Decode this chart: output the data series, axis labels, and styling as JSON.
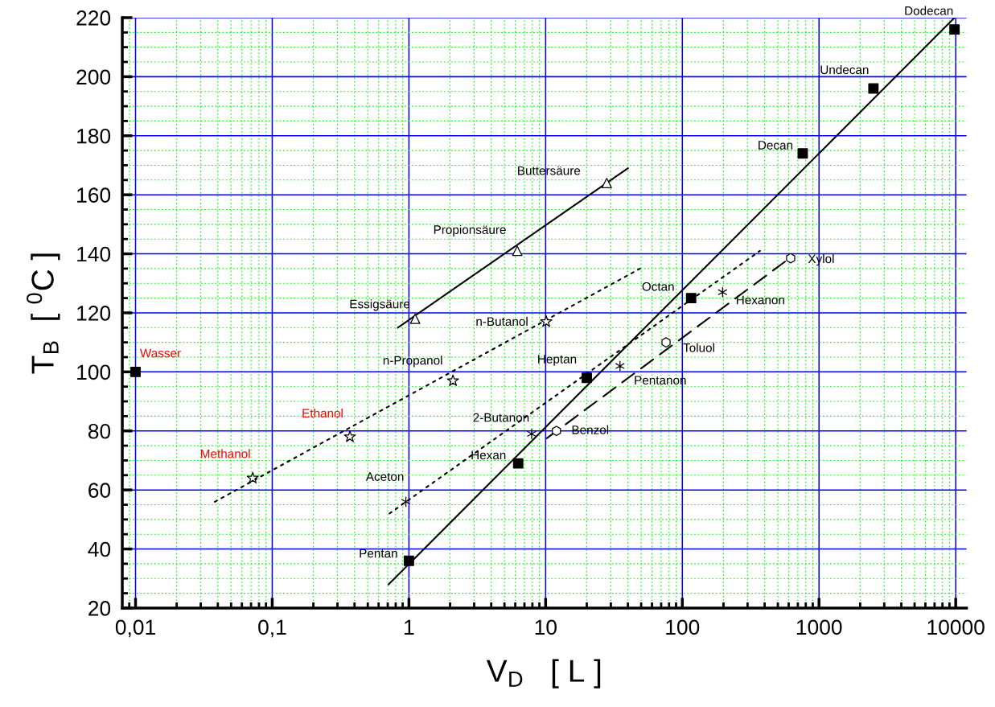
{
  "chart_data": {
    "type": "scatter",
    "xlabel": "V$_{D}$   [ L ]",
    "ylabel": "T$_{B}$  [ $^{0}$C ]",
    "log": "x",
    "grid": true,
    "legend": false,
    "xlim": [
      0.008,
      12000
    ],
    "xticks": [
      {
        "value": 0.01,
        "label": "0,01"
      },
      {
        "value": 0.1,
        "label": "0,1"
      },
      1,
      10,
      100,
      1000,
      10000,
      {
        "value": 0.009,
        "label": null
      },
      {
        "value": 0.02,
        "label": null
      },
      {
        "value": 0.03,
        "label": null
      },
      {
        "value": 0.04,
        "label": null
      },
      {
        "value": 0.05,
        "label": null
      },
      {
        "value": 0.06,
        "label": null
      },
      {
        "value": 0.07,
        "label": null
      },
      {
        "value": 0.08,
        "label": null
      },
      {
        "value": 0.09,
        "label": null
      },
      {
        "value": 0.2,
        "label": null
      },
      {
        "value": 0.3,
        "label": null
      },
      {
        "value": 0.4,
        "label": null
      },
      {
        "value": 0.5,
        "label": null
      },
      {
        "value": 0.6,
        "label": null
      },
      {
        "value": 0.7,
        "label": null
      },
      {
        "value": 0.8,
        "label": null
      },
      {
        "value": 0.9,
        "label": null
      },
      {
        "value": 2,
        "label": null
      },
      {
        "value": 3,
        "label": null
      },
      {
        "value": 4,
        "label": null
      },
      {
        "value": 5,
        "label": null
      },
      {
        "value": 6,
        "label": null
      },
      {
        "value": 7,
        "label": null
      },
      {
        "value": 8,
        "label": null
      },
      {
        "value": 9,
        "label": null
      },
      {
        "value": 20,
        "label": null
      },
      {
        "value": 30,
        "label": null
      },
      {
        "value": 40,
        "label": null
      },
      {
        "value": 50,
        "label": null
      },
      {
        "value": 60,
        "label": null
      },
      {
        "value": 70,
        "label": null
      },
      {
        "value": 80,
        "label": null
      },
      {
        "value": 90,
        "label": null
      },
      {
        "value": 200,
        "label": null
      },
      {
        "value": 300,
        "label": null
      },
      {
        "value": 400,
        "label": null
      },
      {
        "value": 500,
        "label": null
      },
      {
        "value": 600,
        "label": null
      },
      {
        "value": 700,
        "label": null
      },
      {
        "value": 800,
        "label": null
      },
      {
        "value": 900,
        "label": null
      },
      {
        "value": 2000,
        "label": null
      },
      {
        "value": 3000,
        "label": null
      },
      {
        "value": 4000,
        "label": null
      },
      {
        "value": 5000,
        "label": null
      },
      {
        "value": 6000,
        "label": null
      },
      {
        "value": 7000,
        "label": null
      },
      {
        "value": 8000,
        "label": null
      },
      {
        "value": 9000,
        "label": null
      }
    ],
    "ylim": [
      20,
      220
    ],
    "yticks": [
      20,
      40,
      60,
      80,
      100,
      120,
      140,
      160,
      180,
      200,
      220,
      {
        "value": 25,
        "label": null
      },
      {
        "value": 30,
        "label": null
      },
      {
        "value": 35,
        "label": null
      },
      {
        "value": 45,
        "label": null
      },
      {
        "value": 50,
        "label": null
      },
      {
        "value": 55,
        "label": null
      },
      {
        "value": 65,
        "label": null
      },
      {
        "value": 70,
        "label": null
      },
      {
        "value": 75,
        "label": null
      },
      {
        "value": 85,
        "label": null
      },
      {
        "value": 90,
        "label": null
      },
      {
        "value": 95,
        "label": null
      },
      {
        "value": 105,
        "label": null
      },
      {
        "value": 110,
        "label": null
      },
      {
        "value": 115,
        "label": null
      },
      {
        "value": 125,
        "label": null
      },
      {
        "value": 130,
        "label": null
      },
      {
        "value": 135,
        "label": null
      },
      {
        "value": 145,
        "label": null
      },
      {
        "value": 150,
        "label": null
      },
      {
        "value": 155,
        "label": null
      },
      {
        "value": 165,
        "label": null
      },
      {
        "value": 170,
        "label": null
      },
      {
        "value": 175,
        "label": null
      },
      {
        "value": 185,
        "label": null
      },
      {
        "value": 190,
        "label": null
      },
      {
        "value": 195,
        "label": null
      },
      {
        "value": 205,
        "label": null
      },
      {
        "value": 210,
        "label": null
      },
      {
        "value": 215,
        "label": null
      }
    ],
    "series": [
      {
        "marker": "square",
        "color": "#000000",
        "x": [
          0.01
        ],
        "values": [
          100
        ]
      },
      {
        "marker": "square",
        "color": "#000000",
        "x": [
          1.0,
          6.3,
          20,
          116,
          760,
          2500,
          9800
        ],
        "values": [
          36,
          69,
          98,
          125,
          174,
          196,
          216
        ]
      },
      {
        "marker": "star",
        "color": "#000000",
        "x": [
          0.072,
          0.37,
          2.1,
          10.1
        ],
        "values": [
          64,
          78,
          97,
          117
        ]
      },
      {
        "marker": "triangle",
        "color": "#000000",
        "x": [
          1.11,
          6.2,
          28
        ],
        "values": [
          118,
          141,
          164
        ]
      },
      {
        "marker": "cross",
        "color": "#000000",
        "x": [
          0.95,
          7.9,
          35,
          197
        ],
        "values": [
          56,
          79,
          102,
          127
        ]
      },
      {
        "marker": "circle",
        "color": "#000000",
        "x": [
          12,
          76,
          620
        ],
        "values": [
          80,
          110,
          138.5
        ]
      },
      {
        "type": "line",
        "line_style": "solid",
        "color": "#000000",
        "x": [
          0.71,
          9800
        ],
        "values": [
          28,
          220
        ]
      },
      {
        "type": "line",
        "line_style": "solid",
        "color": "#000000",
        "x": [
          0.83,
          40
        ],
        "values": [
          115,
          169
        ]
      },
      {
        "type": "line",
        "line_style": "dotted",
        "color": "#000000",
        "x": [
          0.038,
          49
        ],
        "values": [
          56,
          135
        ]
      },
      {
        "type": "line",
        "line_style": "dotted",
        "color": "#000000",
        "x": [
          0.72,
          370
        ],
        "values": [
          52,
          141
        ]
      },
      {
        "type": "line",
        "line_style": "dashed",
        "color": "#000000",
        "x": [
          10.2,
          630
        ],
        "values": [
          77.5,
          139
        ]
      }
    ],
    "annotations": [
      {
        "text": "Wasser",
        "x": 0.01,
        "y": 100
      },
      {
        "text": "Methanol",
        "x": 0.072,
        "y": 64
      },
      {
        "text": "Ethanol",
        "x": 0.37,
        "y": 78
      },
      {
        "text": "n-Propanol",
        "x": 2.1,
        "y": 97
      },
      {
        "text": "n-Butanol",
        "x": 10.1,
        "y": 117
      },
      {
        "text": "Essigsäure",
        "x": 1.11,
        "y": 118
      },
      {
        "text": "Propionsäure",
        "x": 6.2,
        "y": 141
      },
      {
        "text": "Buttersäure",
        "x": 28,
        "y": 164
      },
      {
        "text": "Aceton",
        "x": 0.95,
        "y": 56
      },
      {
        "text": "2-Butanon",
        "x": 7.9,
        "y": 79
      },
      {
        "text": "Pentanon",
        "x": 35,
        "y": 102
      },
      {
        "text": "Hexanon",
        "x": 197,
        "y": 127
      },
      {
        "text": "Benzol",
        "x": 12,
        "y": 80
      },
      {
        "text": "Toluol",
        "x": 76,
        "y": 110
      },
      {
        "text": "Xylol",
        "x": 620,
        "y": 138.5
      },
      {
        "text": "Pentan",
        "x": 1.0,
        "y": 36
      },
      {
        "text": "Hexan",
        "x": 6.3,
        "y": 69
      },
      {
        "text": "Heptan",
        "x": 20,
        "y": 98
      },
      {
        "text": "Octan",
        "x": 116,
        "y": 125
      },
      {
        "text": "Decan",
        "x": 760,
        "y": 174
      },
      {
        "text": "Undecan",
        "x": 2500,
        "y": 196
      },
      {
        "text": "Dodecan",
        "x": 9800,
        "y": 216
      }
    ]
  }
}
